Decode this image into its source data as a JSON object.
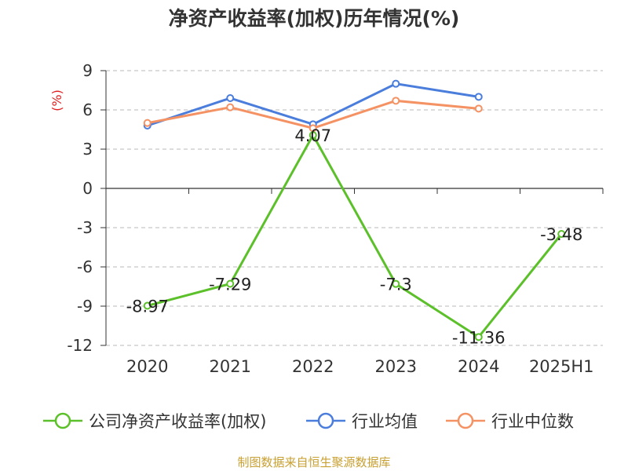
{
  "chart_data": {
    "type": "line",
    "title": "净资产收益率(加权)历年情况(%)",
    "ylabel": "(%)",
    "xlabel": "",
    "categories": [
      "2020",
      "2021",
      "2022",
      "2023",
      "2024",
      "2025H1"
    ],
    "ylim": [
      -12,
      9
    ],
    "yticks": [
      9,
      6,
      3,
      0,
      -3,
      -6,
      -9,
      -12
    ],
    "grid": true,
    "legend_position": "bottom",
    "series": [
      {
        "name": "公司净资产收益率(加权)",
        "color": "#5cc02a",
        "values": [
          -8.97,
          -7.29,
          4.07,
          -7.3,
          -11.36,
          -3.48
        ],
        "labels": [
          "-8.97",
          "-7.29",
          "4.07",
          "-7.3",
          "-11.36",
          "-3.48"
        ]
      },
      {
        "name": "行业均值",
        "color": "#4a7ddc",
        "values": [
          4.8,
          6.9,
          4.9,
          8.0,
          7.0,
          null
        ]
      },
      {
        "name": "行业中位数",
        "color": "#f59264",
        "values": [
          5.0,
          6.2,
          4.6,
          6.7,
          6.1,
          null
        ]
      }
    ]
  },
  "footer": {
    "source": "制图数据来自恒生聚源数据库"
  }
}
